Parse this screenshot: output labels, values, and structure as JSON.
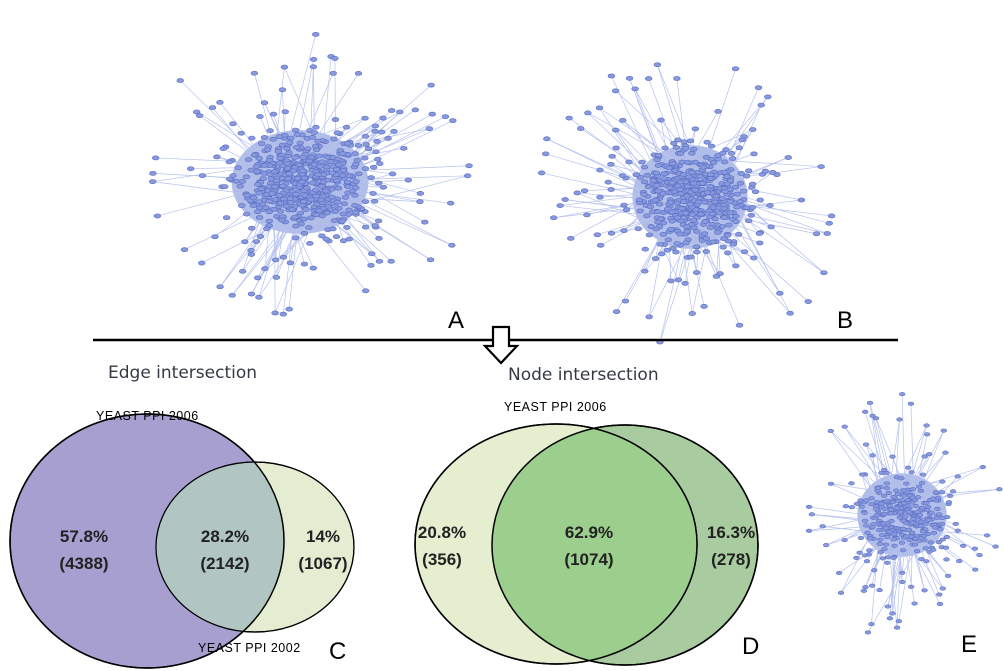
{
  "panels": {
    "a": {
      "letter": "A"
    },
    "b": {
      "letter": "B"
    },
    "c": {
      "letter": "C"
    },
    "d": {
      "letter": "D"
    },
    "e": {
      "letter": "E"
    }
  },
  "edge_intersection": {
    "title": "Edge intersection",
    "set_big_label": "YEAST  PPI  2006",
    "set_small_label": "YEAST  PPI  2002",
    "left_only": {
      "pct": "57.8%",
      "count": "(4388)"
    },
    "overlap": {
      "pct": "28.2%",
      "count": "(2142)"
    },
    "right_only": {
      "pct": "14%",
      "count": "(1067)"
    }
  },
  "node_intersection": {
    "title": "Node intersection",
    "set_label": "YEAST  PPI  2006",
    "left_only": {
      "pct": "20.8%",
      "count": "(356)"
    },
    "overlap": {
      "pct": "62.9%",
      "count": "(1074)"
    },
    "right_only": {
      "pct": "16.3%",
      "count": "(278)"
    }
  },
  "colors": {
    "edge_big_set": "#a79fd0",
    "edge_overlap": "#b1c5c3",
    "edge_small_set": "#e4edd2",
    "node_left_set": "#e5eecf",
    "node_overlap": "#9cce8d",
    "node_right_set": "#a9cba0"
  }
}
